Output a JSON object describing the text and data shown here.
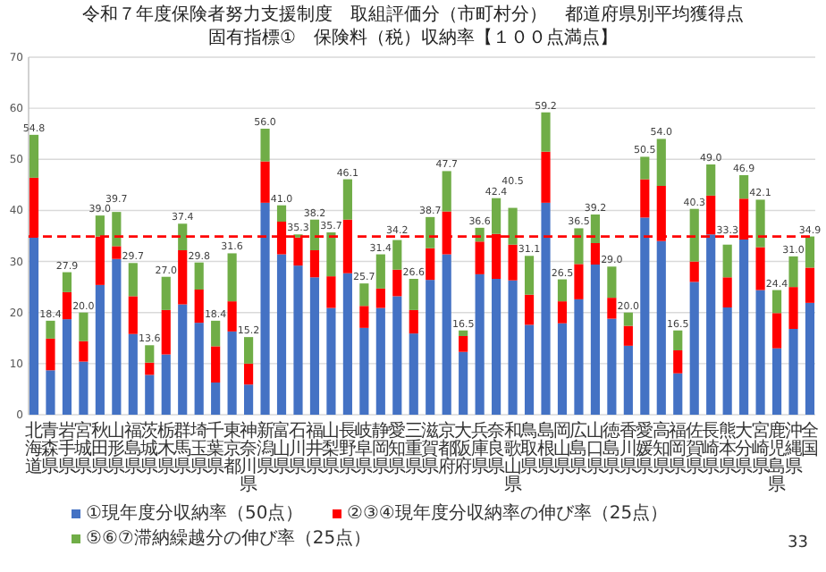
{
  "chart_data": {
    "type": "bar",
    "stacked": true,
    "title": "令和７年度保険者努力支援制度　取組評価分（市町村分）　都道府県別平均獲得点",
    "subtitle": "固有指標①　保険料（税）収納率【１００点満点】",
    "categories": [
      "北海道",
      "青森県",
      "岩手県",
      "宮城県",
      "秋田県",
      "山形県",
      "福島県",
      "茨城県",
      "栃木県",
      "群馬県",
      "埼玉県",
      "千葉県",
      "東京都",
      "神奈川県",
      "新潟県",
      "富山県",
      "石川県",
      "福井県",
      "山梨県",
      "長野県",
      "岐阜県",
      "静岡県",
      "愛知県",
      "三重県",
      "滋賀県",
      "京都府",
      "大阪府",
      "兵庫県",
      "奈良県",
      "和歌山県",
      "鳥取県",
      "島根県",
      "岡山県",
      "広島県",
      "山口県",
      "徳島県",
      "香川県",
      "愛媛県",
      "高知県",
      "福岡県",
      "佐賀県",
      "長崎県",
      "熊本県",
      "大分県",
      "宮崎県",
      "鹿児島県",
      "沖縄県",
      "全国"
    ],
    "series": [
      {
        "name": "①現年度分収納率（50点）",
        "color": "#4472c4",
        "values": [
          34.7,
          8.7,
          18.7,
          10.4,
          25.4,
          30.5,
          15.8,
          7.8,
          11.8,
          21.6,
          18.0,
          6.3,
          16.3,
          5.9,
          41.5,
          31.4,
          29.2,
          26.9,
          20.9,
          27.7,
          17.0,
          20.9,
          23.2,
          15.9,
          26.4,
          31.4,
          12.3,
          27.5,
          26.6,
          26.3,
          17.6,
          41.5,
          17.9,
          22.6,
          29.4,
          18.8,
          13.5,
          38.6,
          34.0,
          8.1,
          26.0,
          35.3,
          21.0,
          34.3,
          24.4,
          13.0,
          16.8,
          21.9
        ]
      },
      {
        "name": "②③④現年度分収納率の伸び率（25点）",
        "color": "#ff0000",
        "values": [
          11.7,
          6.2,
          5.3,
          4.0,
          9.5,
          2.5,
          7.4,
          2.4,
          8.7,
          10.6,
          6.5,
          7.1,
          5.9,
          4.1,
          8.1,
          6.4,
          5.5,
          5.3,
          6.2,
          10.5,
          4.3,
          3.8,
          5.2,
          4.6,
          6.2,
          8.4,
          3.1,
          6.4,
          8.8,
          7.0,
          5.9,
          10.0,
          4.3,
          6.9,
          4.2,
          4.1,
          3.9,
          7.5,
          10.8,
          4.5,
          4.0,
          7.6,
          5.9,
          8.0,
          8.4,
          6.9,
          8.2,
          6.9
        ]
      },
      {
        "name": "⑤⑥⑦滞納繰越分の伸び率（25点）",
        "color": "#70ad47",
        "values": [
          8.4,
          3.5,
          3.9,
          5.6,
          4.1,
          6.7,
          6.5,
          3.4,
          6.5,
          5.2,
          5.3,
          5.0,
          9.4,
          5.2,
          6.4,
          3.2,
          0.6,
          6.0,
          8.6,
          7.9,
          4.4,
          6.7,
          5.8,
          6.1,
          6.1,
          7.9,
          1.1,
          2.7,
          7.0,
          7.2,
          7.6,
          7.7,
          4.3,
          7.0,
          5.6,
          6.1,
          2.6,
          4.4,
          9.2,
          3.9,
          10.3,
          6.1,
          6.4,
          4.6,
          9.3,
          4.5,
          6.0,
          6.1
        ]
      }
    ],
    "totals": [
      "54.8",
      "18.4",
      "27.9",
      "20.0",
      "39.0",
      "39.7",
      "29.7",
      "13.6",
      "27.0",
      "37.4",
      "29.8",
      "18.4",
      "31.6",
      "15.2",
      "56.0",
      "41.0",
      "35.3",
      "38.2",
      "35.7",
      "46.1",
      "25.7",
      "31.4",
      "34.2",
      "26.6",
      "38.7",
      "47.7",
      "16.5",
      "36.6",
      "42.4",
      "40.5",
      "31.1",
      "59.2",
      "26.5",
      "36.5",
      "39.2",
      "29.0",
      "20.0",
      "50.5",
      "54.0",
      "16.5",
      "40.3",
      "49.0",
      "33.3",
      "46.9",
      "42.1",
      "24.4",
      "31.0",
      "34.9"
    ],
    "ylim": [
      0,
      70
    ],
    "yticks": [
      0,
      10,
      20,
      30,
      40,
      50,
      60,
      70
    ],
    "grid": "y",
    "legend": "bottom",
    "ref_lines": [
      {
        "axis": "y",
        "value": 34.9,
        "color": "#ff0000",
        "line_style": "dashed"
      }
    ],
    "annotations": [
      "33"
    ]
  }
}
